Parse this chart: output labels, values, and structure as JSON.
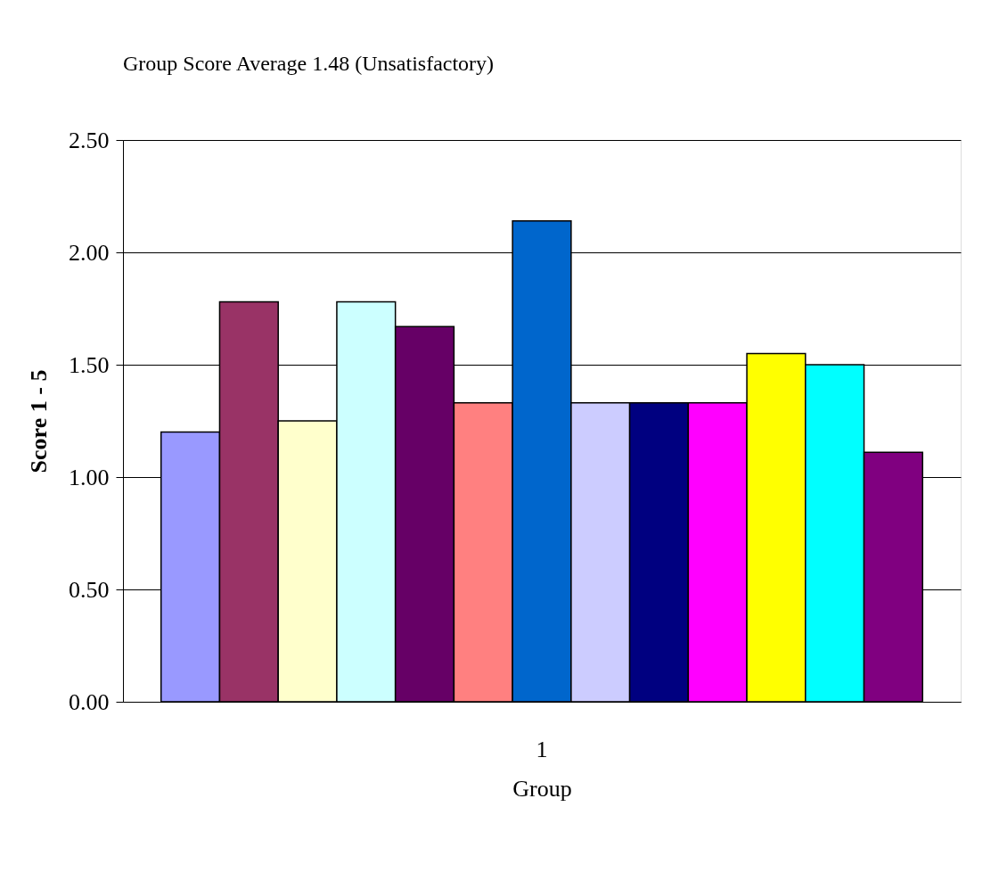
{
  "chart_data": {
    "type": "bar",
    "title": "Group Score Average 1.48 (Unsatisfactory)",
    "xlabel": "Group",
    "ylabel": "Score 1 - 5",
    "categories": [
      "1"
    ],
    "series": [
      {
        "color": "#9999ff",
        "values": [
          1.2
        ]
      },
      {
        "color": "#993366",
        "values": [
          1.78
        ]
      },
      {
        "color": "#ffffcc",
        "values": [
          1.25
        ]
      },
      {
        "color": "#ccffff",
        "values": [
          1.78
        ]
      },
      {
        "color": "#660066",
        "values": [
          1.67
        ]
      },
      {
        "color": "#ff8080",
        "values": [
          1.33
        ]
      },
      {
        "color": "#0066cc",
        "values": [
          2.14
        ]
      },
      {
        "color": "#ccccff",
        "values": [
          1.33
        ]
      },
      {
        "color": "#000080",
        "values": [
          1.33
        ]
      },
      {
        "color": "#ff00ff",
        "values": [
          1.33
        ]
      },
      {
        "color": "#ffff00",
        "values": [
          1.55
        ]
      },
      {
        "color": "#00ffff",
        "values": [
          1.5
        ]
      },
      {
        "color": "#800080",
        "values": [
          1.11
        ]
      }
    ],
    "ylim": [
      0,
      2.5
    ],
    "yticks": [
      {
        "value": 0,
        "label": "0.00"
      },
      {
        "value": 0.5,
        "label": "0.50"
      },
      {
        "value": 1,
        "label": "1.00"
      },
      {
        "value": 1.5,
        "label": "1.50"
      },
      {
        "value": 2,
        "label": "2.00"
      },
      {
        "value": 2.5,
        "label": "2.50"
      }
    ],
    "grid": "y",
    "legend": false
  }
}
